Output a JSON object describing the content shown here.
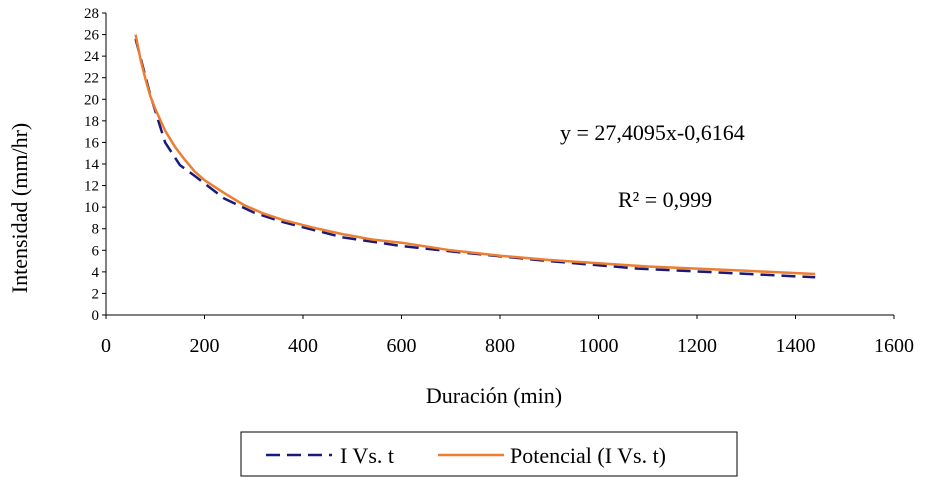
{
  "chart_data": {
    "type": "line",
    "xlabel": "Duración (min)",
    "ylabel": "Intensidad (mm/hr)",
    "xlim": [
      0,
      1600
    ],
    "ylim": [
      0,
      28
    ],
    "xticks": [
      0,
      200,
      400,
      600,
      800,
      1000,
      1200,
      1400,
      1600
    ],
    "yticks": [
      0,
      2,
      4,
      6,
      8,
      10,
      12,
      14,
      16,
      18,
      20,
      22,
      24,
      26,
      28
    ],
    "grid": false,
    "legend_position": "bottom",
    "annotations": [
      "y = 27,4095x-0,6164",
      "R² = 0,999"
    ],
    "series": [
      {
        "name": "I Vs. t",
        "style": "dashed",
        "color": "#1a1a7a",
        "x": [
          60,
          90,
          120,
          150,
          180,
          240,
          300,
          360,
          480,
          600,
          720,
          900,
          1080,
          1260,
          1440
        ],
        "y": [
          25.6,
          20.4,
          16.0,
          13.9,
          12.9,
          10.8,
          9.5,
          8.6,
          7.2,
          6.4,
          5.8,
          5.0,
          4.3,
          3.9,
          3.5
        ]
      },
      {
        "name": "Potencial (I Vs. t)",
        "style": "solid",
        "color": "#ed7d31",
        "x": [
          60,
          70,
          80,
          90,
          100,
          120,
          140,
          160,
          180,
          200,
          240,
          280,
          320,
          360,
          420,
          480,
          540,
          600,
          700,
          800,
          900,
          1000,
          1100,
          1200,
          1300,
          1440
        ],
        "y": [
          26.0,
          23.7,
          21.9,
          20.3,
          19.1,
          17.1,
          15.6,
          14.4,
          13.3,
          12.5,
          11.3,
          10.2,
          9.4,
          8.8,
          8.1,
          7.5,
          7.0,
          6.7,
          6.0,
          5.5,
          5.1,
          4.8,
          4.5,
          4.3,
          4.1,
          3.8
        ]
      }
    ]
  }
}
